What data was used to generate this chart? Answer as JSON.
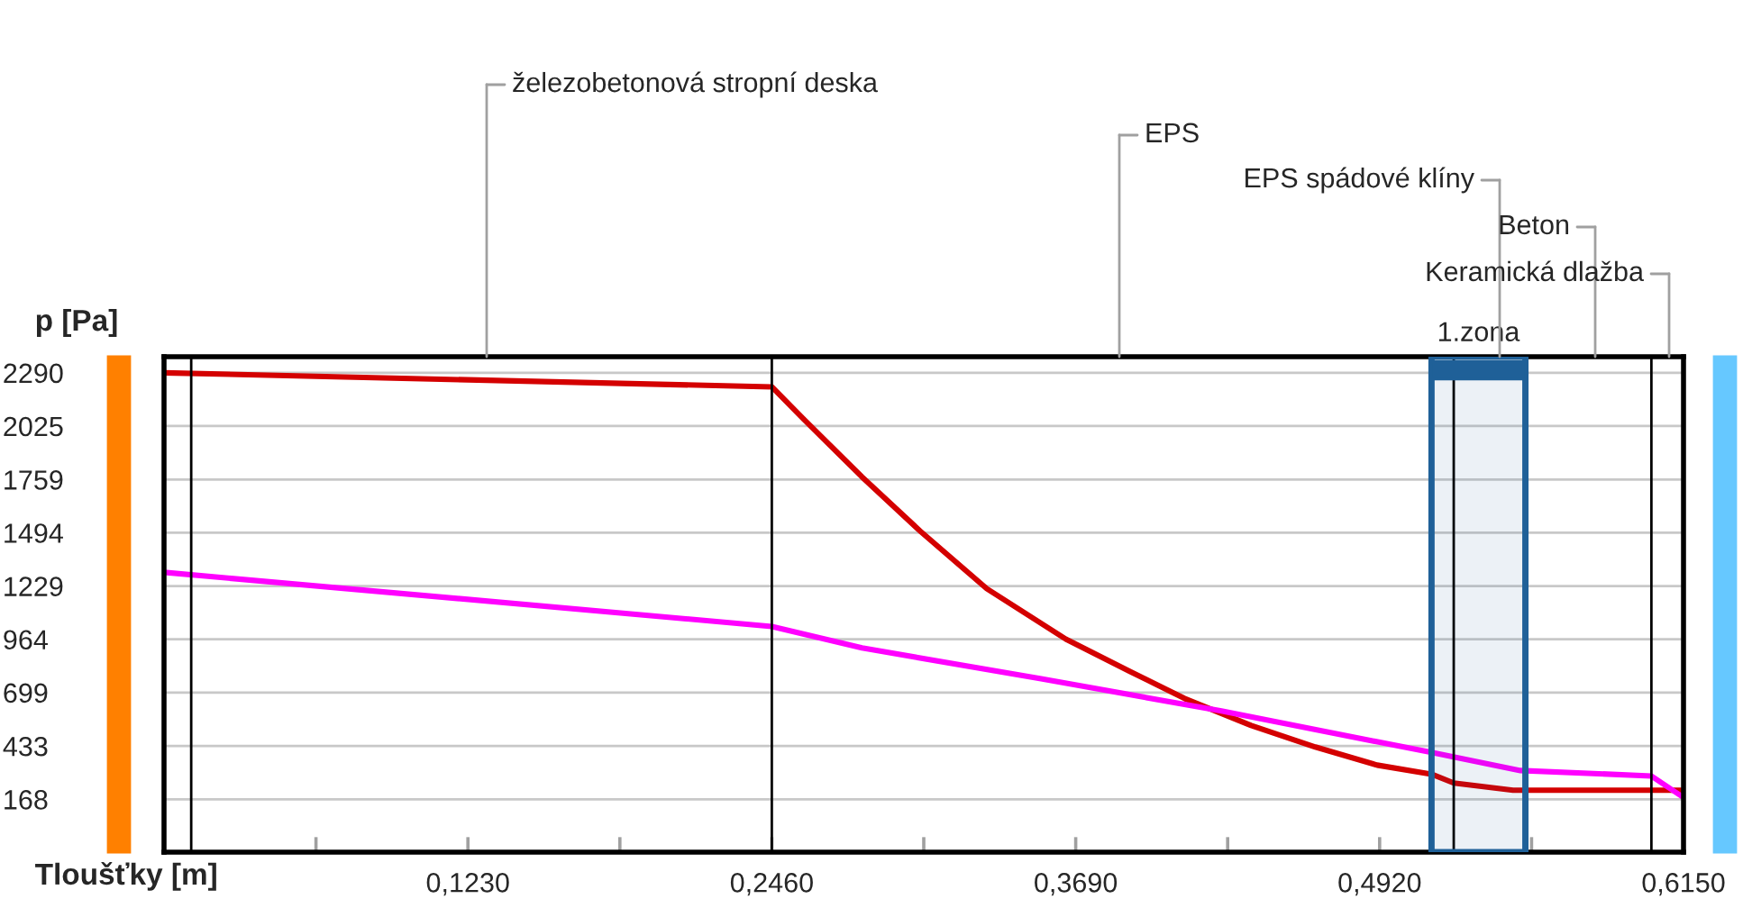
{
  "chart_data": {
    "type": "line",
    "xlabel": "Tloušťky [m]",
    "ylabel": "p [Pa]",
    "xlim": [
      0,
      0.615
    ],
    "ylim": [
      -95,
      2370
    ],
    "xticks": [
      {
        "value": 0.0615,
        "label": null
      },
      {
        "value": 0.123,
        "label": "0,1230"
      },
      {
        "value": 0.1845,
        "label": null
      },
      {
        "value": 0.246,
        "label": "0,2460"
      },
      {
        "value": 0.3075,
        "label": null
      },
      {
        "value": 0.369,
        "label": "0,3690"
      },
      {
        "value": 0.4305,
        "label": null
      },
      {
        "value": 0.492,
        "label": "0,4920"
      },
      {
        "value": 0.5535,
        "label": null
      },
      {
        "value": 0.615,
        "label": "0,6150"
      }
    ],
    "yticks": [
      168,
      433,
      699,
      964,
      1229,
      1494,
      1759,
      2025,
      2290
    ],
    "grid": "y",
    "marker": "none",
    "line_style": "solid",
    "series": [
      {
        "color": "#d40000",
        "x": [
          0,
          0.246,
          0.259,
          0.2825,
          0.306,
          0.333,
          0.365,
          0.391,
          0.413,
          0.44,
          0.466,
          0.491,
          0.513,
          0.522,
          0.546,
          0.602,
          0.615
        ],
        "values": [
          2290,
          2220,
          2058,
          1772,
          1503,
          1216,
          965,
          804,
          670,
          535,
          428,
          338,
          293,
          249,
          213,
          213,
          213
        ]
      },
      {
        "color": "#ff00ff",
        "x": [
          0,
          0.246,
          0.2825,
          0.355,
          0.428,
          0.513,
          0.549,
          0.602,
          0.615
        ],
        "values": [
          1297,
          1028,
          921,
          768,
          607,
          401,
          311,
          284,
          177
        ]
      }
    ],
    "ref_lines": [
      {
        "axis": "x",
        "value": 0.011,
        "color": "#000000"
      },
      {
        "axis": "x",
        "value": 0.246,
        "color": "#000000"
      },
      {
        "axis": "x",
        "value": 0.522,
        "color": "#000000"
      },
      {
        "axis": "x",
        "value": 0.602,
        "color": "#000000"
      }
    ],
    "bands": [
      {
        "axis": "x",
        "from": 0.513,
        "to": 0.551,
        "label": "1.zona",
        "color": "#1f6098"
      }
    ],
    "annotations": [
      "železobetonová stropní deska",
      "EPS",
      "EPS spádové klíny",
      "Beton",
      "Keramická dlažba"
    ]
  }
}
